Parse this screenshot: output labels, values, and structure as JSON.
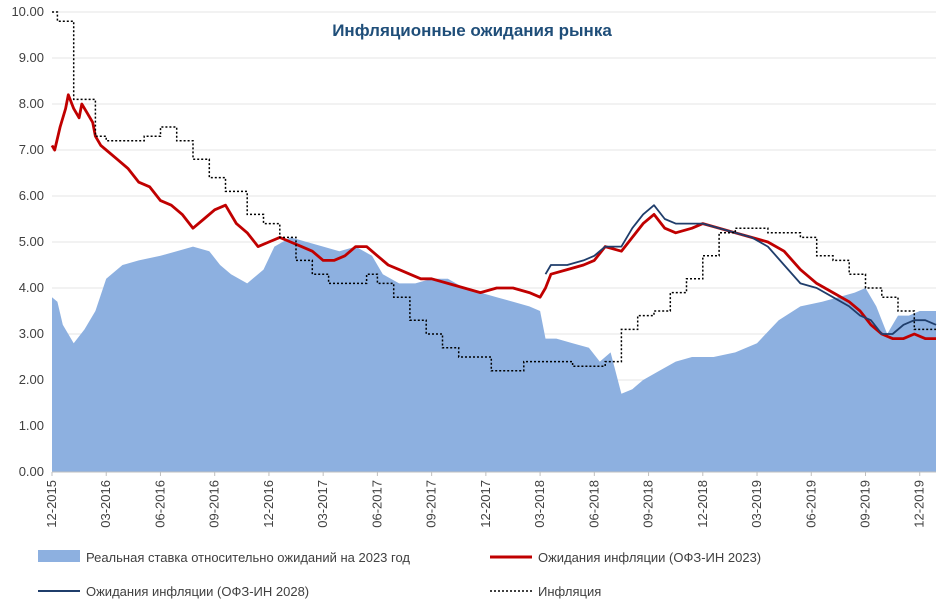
{
  "chart_data": {
    "type": "line",
    "title": "Инфляционные ожидания рынка",
    "ylim": [
      0,
      10
    ],
    "yticks": [
      "0.00",
      "1.00",
      "2.00",
      "3.00",
      "4.00",
      "5.00",
      "6.00",
      "7.00",
      "8.00",
      "9.00",
      "10.00"
    ],
    "xticks": [
      "12-2015",
      "03-2016",
      "06-2016",
      "09-2016",
      "12-2016",
      "03-2017",
      "06-2017",
      "09-2017",
      "12-2017",
      "03-2018",
      "06-2018",
      "09-2018",
      "12-2018",
      "03-2019",
      "06-2019",
      "09-2019",
      "12-2019"
    ],
    "x_start": 0,
    "x_end": 16.3,
    "colors": {
      "area": "#8DB0E0",
      "red": "#C00000",
      "navy": "#1F3D6B",
      "dots": "#000000",
      "title": "#1F4E79"
    },
    "series": [
      {
        "name": "Реальная ставка относительно ожиданий на 2023 год",
        "kind": "area",
        "x": [
          0,
          0.1,
          0.2,
          0.4,
          0.6,
          0.8,
          1.0,
          1.3,
          1.6,
          2.0,
          2.3,
          2.6,
          2.9,
          3.1,
          3.3,
          3.6,
          3.9,
          4.1,
          4.4,
          4.7,
          5.0,
          5.3,
          5.6,
          5.9,
          6.1,
          6.4,
          6.7,
          7.0,
          7.3,
          7.6,
          7.9,
          8.2,
          8.5,
          8.8,
          9.0,
          9.1,
          9.3,
          9.6,
          9.9,
          10.1,
          10.3,
          10.5,
          10.7,
          10.9,
          11.2,
          11.5,
          11.8,
          12.2,
          12.6,
          13.0,
          13.4,
          13.8,
          14.2,
          14.5,
          14.8,
          15.0,
          15.2,
          15.4,
          15.6,
          15.8,
          16.0,
          16.3
        ],
        "values": [
          3.8,
          3.7,
          3.2,
          2.8,
          3.1,
          3.5,
          4.2,
          4.5,
          4.6,
          4.7,
          4.8,
          4.9,
          4.8,
          4.5,
          4.3,
          4.1,
          4.4,
          4.9,
          5.1,
          5.0,
          4.9,
          4.8,
          4.9,
          4.7,
          4.3,
          4.1,
          4.1,
          4.2,
          4.2,
          4.0,
          3.9,
          3.8,
          3.7,
          3.6,
          3.5,
          2.9,
          2.9,
          2.8,
          2.7,
          2.4,
          2.6,
          1.7,
          1.8,
          2.0,
          2.2,
          2.4,
          2.5,
          2.5,
          2.6,
          2.8,
          3.3,
          3.6,
          3.7,
          3.8,
          3.9,
          4.0,
          3.6,
          3.0,
          3.4,
          3.4,
          3.5,
          3.5
        ]
      },
      {
        "name": "Ожидания инфляции (ОФЗ-ИН 2023)",
        "kind": "line",
        "x": [
          0,
          0.05,
          0.15,
          0.25,
          0.3,
          0.4,
          0.5,
          0.55,
          0.65,
          0.75,
          0.8,
          0.9,
          1.0,
          1.2,
          1.4,
          1.6,
          1.8,
          2.0,
          2.2,
          2.4,
          2.6,
          2.8,
          3.0,
          3.2,
          3.4,
          3.6,
          3.8,
          4.0,
          4.2,
          4.4,
          4.6,
          4.8,
          5.0,
          5.2,
          5.4,
          5.6,
          5.8,
          6.0,
          6.2,
          6.4,
          6.6,
          6.8,
          7.0,
          7.3,
          7.6,
          7.9,
          8.2,
          8.5,
          8.8,
          9.0,
          9.1,
          9.2,
          9.5,
          9.8,
          10.0,
          10.2,
          10.5,
          10.7,
          10.9,
          11.1,
          11.3,
          11.5,
          11.8,
          12.0,
          12.3,
          12.6,
          12.9,
          13.2,
          13.5,
          13.8,
          14.1,
          14.4,
          14.7,
          14.9,
          15.1,
          15.3,
          15.5,
          15.7,
          15.9,
          16.1,
          16.3
        ],
        "values": [
          7.1,
          7.0,
          7.5,
          7.9,
          8.2,
          7.9,
          7.7,
          8.0,
          7.8,
          7.6,
          7.3,
          7.1,
          7.0,
          6.8,
          6.6,
          6.3,
          6.2,
          5.9,
          5.8,
          5.6,
          5.3,
          5.5,
          5.7,
          5.8,
          5.4,
          5.2,
          4.9,
          5.0,
          5.1,
          5.0,
          4.9,
          4.8,
          4.6,
          4.6,
          4.7,
          4.9,
          4.9,
          4.7,
          4.5,
          4.4,
          4.3,
          4.2,
          4.2,
          4.1,
          4.0,
          3.9,
          4.0,
          4.0,
          3.9,
          3.8,
          4.0,
          4.3,
          4.4,
          4.5,
          4.6,
          4.9,
          4.8,
          5.1,
          5.4,
          5.6,
          5.3,
          5.2,
          5.3,
          5.4,
          5.3,
          5.2,
          5.1,
          5.0,
          4.8,
          4.4,
          4.1,
          3.9,
          3.7,
          3.5,
          3.2,
          3.0,
          2.9,
          2.9,
          3.0,
          2.9,
          2.9
        ]
      },
      {
        "name": "Ожидания инфляции (ОФЗ-ИН 2028)",
        "kind": "line",
        "x": [
          9.1,
          9.2,
          9.5,
          9.8,
          10.0,
          10.2,
          10.5,
          10.7,
          10.9,
          11.1,
          11.3,
          11.5,
          11.8,
          12.0,
          12.3,
          12.6,
          12.9,
          13.2,
          13.5,
          13.8,
          14.1,
          14.4,
          14.7,
          14.9,
          15.1,
          15.3,
          15.5,
          15.7,
          15.9,
          16.1,
          16.3
        ],
        "values": [
          4.3,
          4.5,
          4.5,
          4.6,
          4.7,
          4.9,
          4.9,
          5.3,
          5.6,
          5.8,
          5.5,
          5.4,
          5.4,
          5.4,
          5.3,
          5.2,
          5.1,
          4.9,
          4.5,
          4.1,
          4.0,
          3.8,
          3.6,
          3.4,
          3.3,
          3.0,
          3.0,
          3.2,
          3.3,
          3.3,
          3.2
        ]
      },
      {
        "name": "Инфляция",
        "kind": "step",
        "x": [
          0,
          0.1,
          0.3,
          0.4,
          0.6,
          0.8,
          1.0,
          1.7,
          2.0,
          2.3,
          2.6,
          2.9,
          3.2,
          3.6,
          3.9,
          4.2,
          4.5,
          4.8,
          5.1,
          5.4,
          5.8,
          6.0,
          6.3,
          6.6,
          6.9,
          7.2,
          7.5,
          7.8,
          8.1,
          8.4,
          8.7,
          9.0,
          9.3,
          9.6,
          9.9,
          10.2,
          10.5,
          10.8,
          11.1,
          11.4,
          11.7,
          12.0,
          12.3,
          12.6,
          12.9,
          13.2,
          13.5,
          13.8,
          14.1,
          14.4,
          14.7,
          15.0,
          15.3,
          15.6,
          15.9,
          16.3
        ],
        "values": [
          10.0,
          9.8,
          9.8,
          8.1,
          8.1,
          7.3,
          7.2,
          7.3,
          7.5,
          7.2,
          6.8,
          6.4,
          6.1,
          5.6,
          5.4,
          5.1,
          4.6,
          4.3,
          4.1,
          4.1,
          4.3,
          4.1,
          3.8,
          3.3,
          3.0,
          2.7,
          2.5,
          2.5,
          2.2,
          2.2,
          2.4,
          2.4,
          2.4,
          2.3,
          2.3,
          2.4,
          3.1,
          3.4,
          3.5,
          3.9,
          4.2,
          4.7,
          5.2,
          5.3,
          5.3,
          5.2,
          5.2,
          5.1,
          4.7,
          4.6,
          4.3,
          4.0,
          3.8,
          3.5,
          3.1,
          3.1
        ]
      }
    ]
  }
}
